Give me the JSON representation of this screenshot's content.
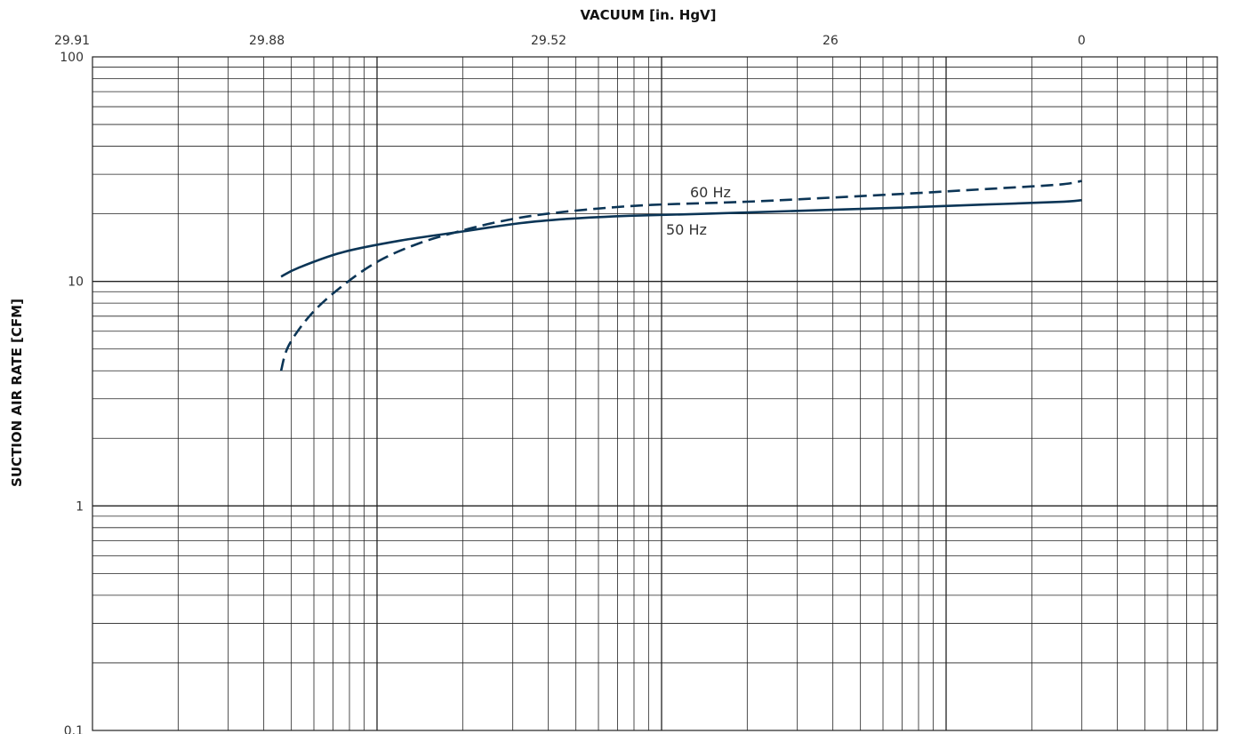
{
  "chart_data": {
    "type": "line",
    "title": "",
    "xlabel": "VACUUM  [in. HgV]",
    "ylabel": "SUCTION AIR RATE  [CFM]",
    "x_tick_labels": [
      "29.91",
      "29.88",
      "29.52",
      "26",
      "0"
    ],
    "y_tick_labels": [
      "100",
      "10",
      "1",
      "0.1"
    ],
    "ylim": [
      0.1,
      100
    ],
    "y_scale": "log",
    "x_scale": "log (absolute pressure)",
    "grid": true,
    "legend": "none (inline labels)",
    "series": [
      {
        "name": "50 Hz",
        "line_style": "solid",
        "color": "#0b3556",
        "points": [
          [
            29.875,
            10.5
          ],
          [
            29.868,
            11.5
          ],
          [
            29.845,
            13.5
          ],
          [
            29.8,
            15.2
          ],
          [
            29.72,
            16.7
          ],
          [
            29.6,
            18.2
          ],
          [
            29.45,
            19.0
          ],
          [
            29.15,
            19.6
          ],
          [
            28.5,
            20.0
          ],
          [
            27.0,
            20.6
          ],
          [
            23.0,
            21.3
          ],
          [
            16.0,
            22.0
          ],
          [
            5.0,
            22.6
          ],
          [
            0.0,
            23.0
          ]
        ]
      },
      {
        "name": "60 Hz",
        "line_style": "dashed",
        "color": "#0b3556",
        "points": [
          [
            29.875,
            4.0
          ],
          [
            29.872,
            5.2
          ],
          [
            29.862,
            7.2
          ],
          [
            29.845,
            9.6
          ],
          [
            29.82,
            12.3
          ],
          [
            29.78,
            14.8
          ],
          [
            29.72,
            16.9
          ],
          [
            29.65,
            18.5
          ],
          [
            29.55,
            19.8
          ],
          [
            29.35,
            21.0
          ],
          [
            29.0,
            21.9
          ],
          [
            28.0,
            22.6
          ],
          [
            26.5,
            23.4
          ],
          [
            23.0,
            24.5
          ],
          [
            16.0,
            25.8
          ],
          [
            5.0,
            27.0
          ],
          [
            0.0,
            28.0
          ]
        ]
      }
    ]
  }
}
